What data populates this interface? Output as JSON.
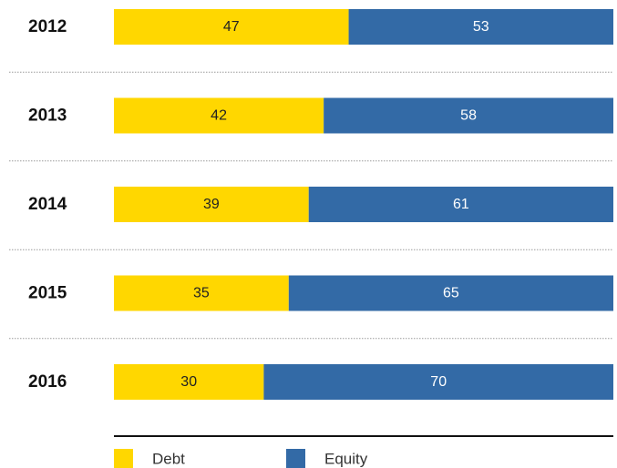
{
  "chart_data": {
    "type": "bar",
    "orientation": "horizontal",
    "stacked": true,
    "categories": [
      "2012",
      "2013",
      "2014",
      "2015",
      "2016"
    ],
    "series": [
      {
        "name": "Debt",
        "values": [
          47,
          42,
          39,
          35,
          30
        ],
        "color": "#FFD700",
        "label_color": "#222222"
      },
      {
        "name": "Equity",
        "values": [
          53,
          58,
          61,
          65,
          70
        ],
        "color": "#336AA6",
        "label_color": "#ffffff"
      }
    ],
    "xlim": [
      0,
      100
    ],
    "data_labels": true,
    "legend_position": "bottom",
    "grid": false,
    "separators": "dotted"
  }
}
